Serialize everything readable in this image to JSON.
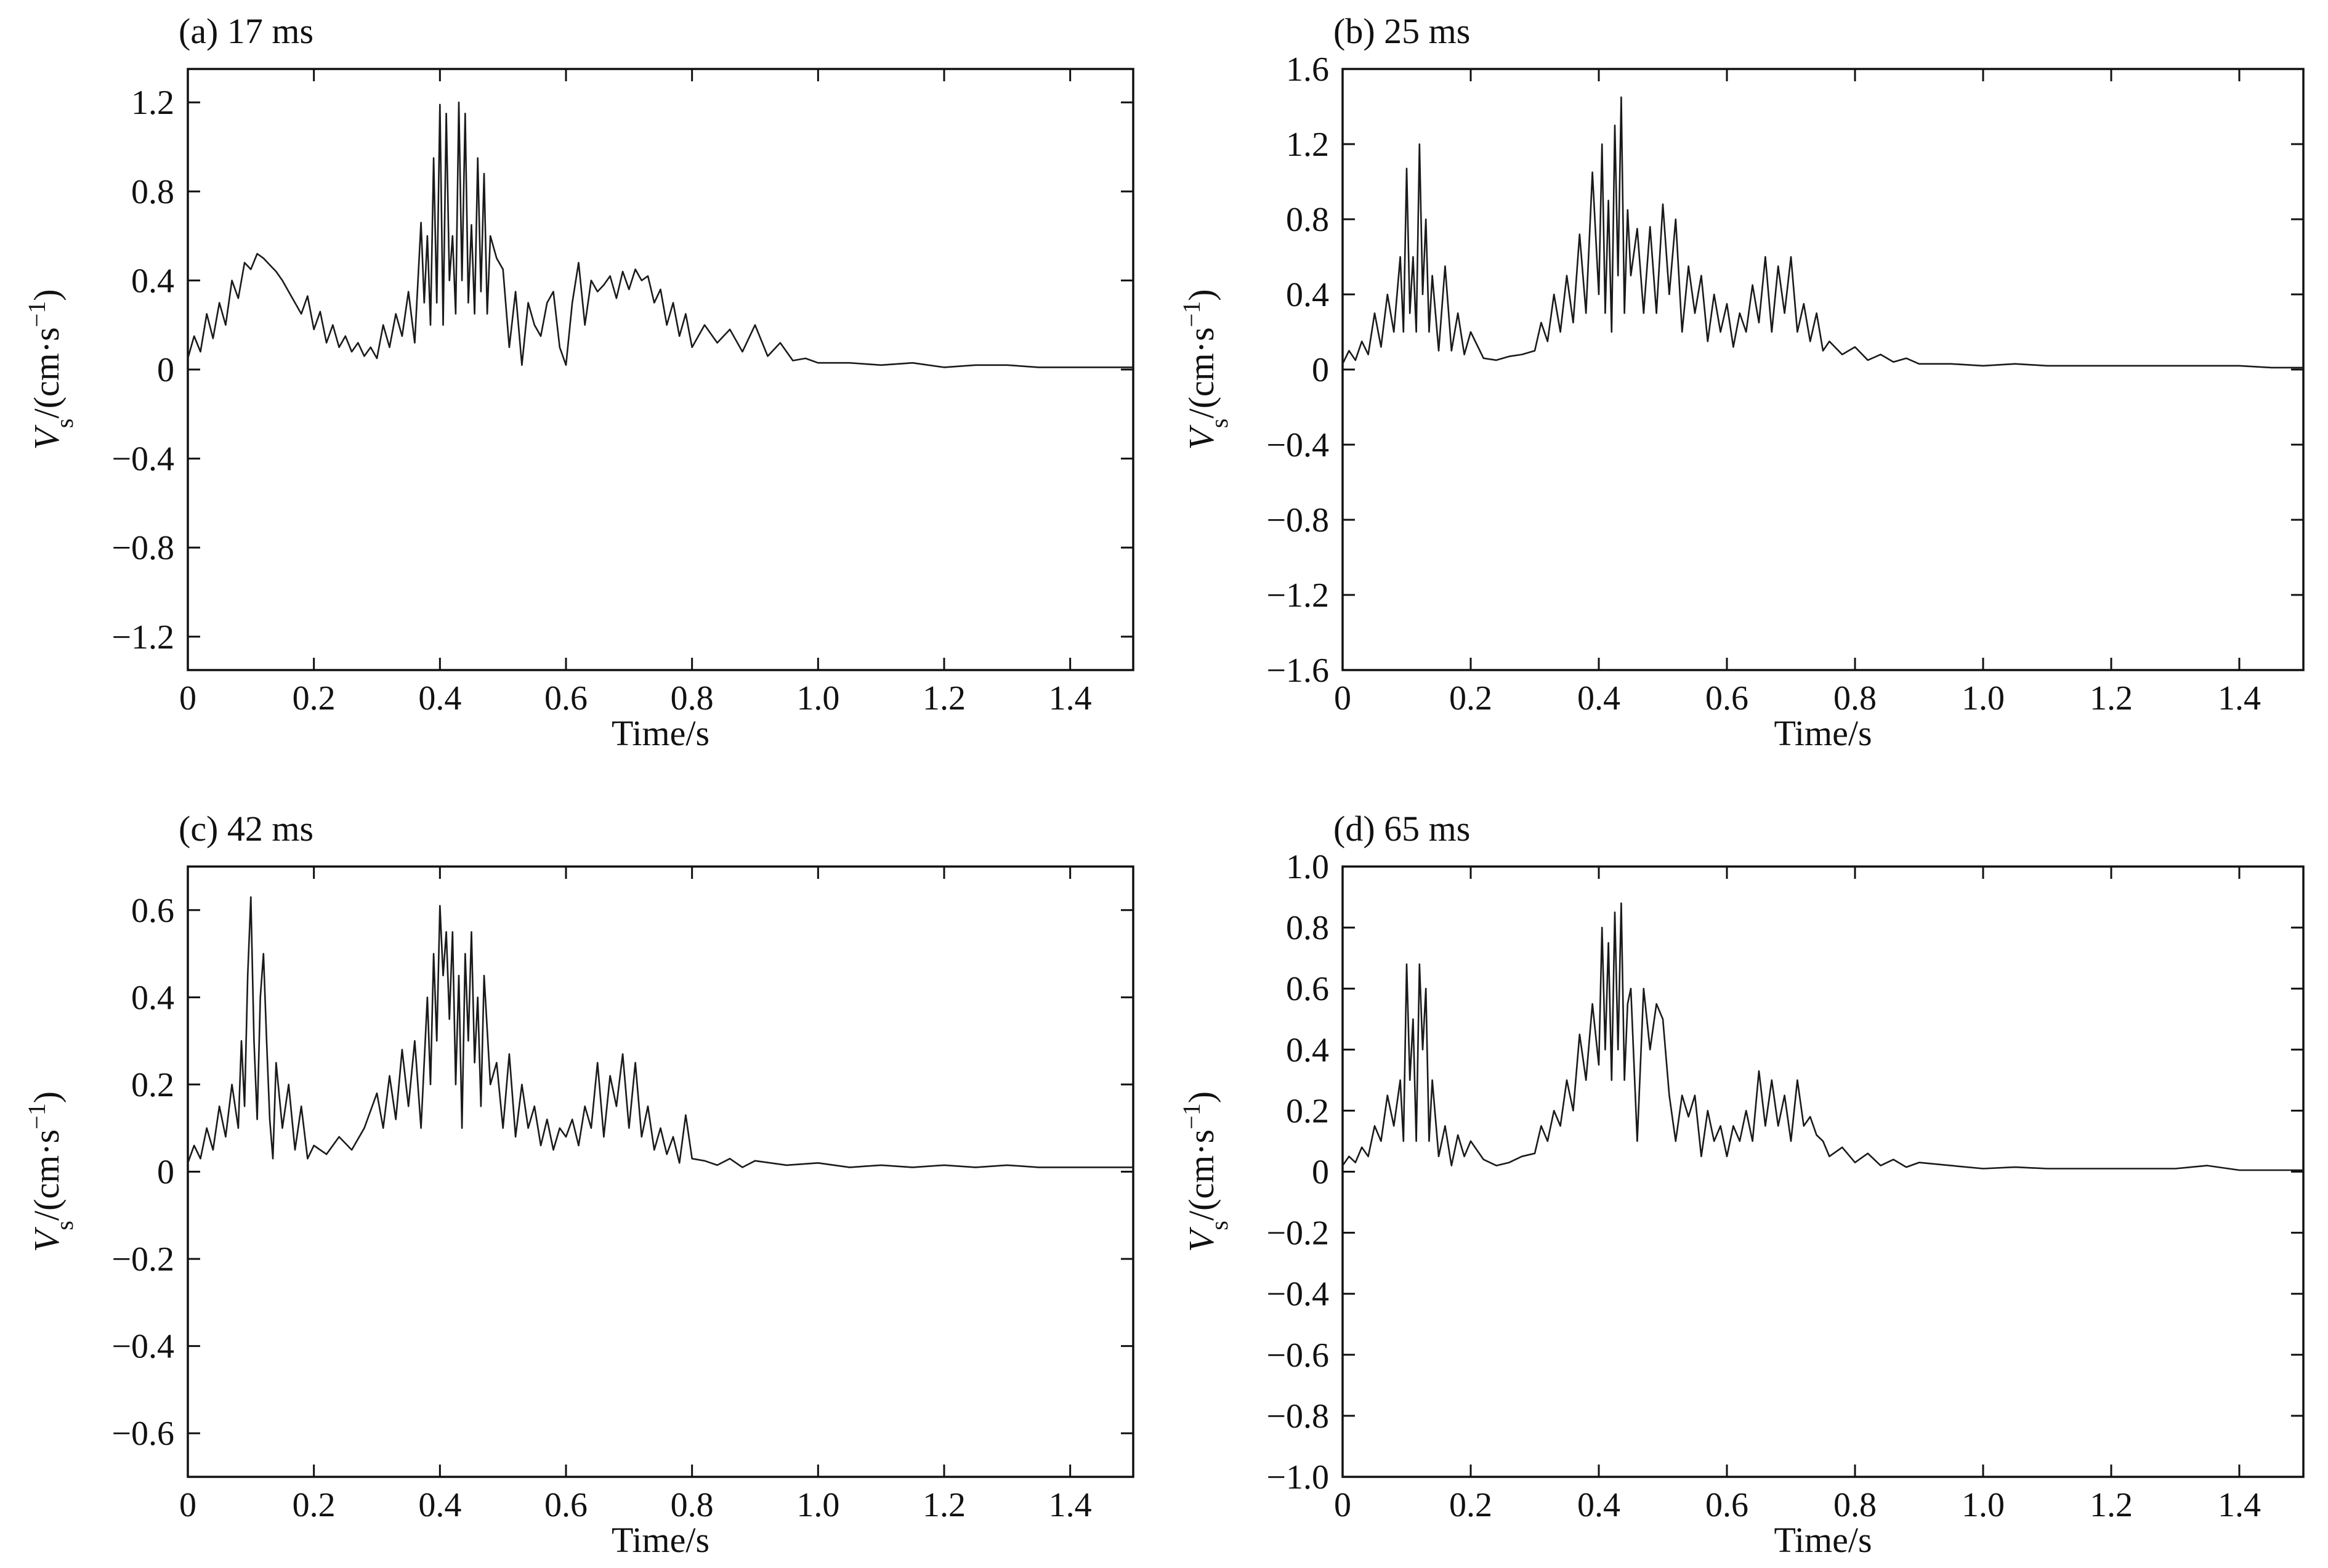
{
  "chart_data": [
    {
      "type": "line",
      "title": "(a) 17 ms",
      "xlabel": "Time/s",
      "ylabel": {
        "main": "V",
        "sub": "s",
        "unit": "/(cm·s",
        "sup": "−1",
        "close": ")"
      },
      "xlim": [
        0,
        1.5
      ],
      "ylim": [
        -1.35,
        1.35
      ],
      "xticks": [
        0,
        0.2,
        0.4,
        0.6,
        0.8,
        1.0,
        1.2,
        1.4
      ],
      "xtick_labels": [
        "0",
        "0.2",
        "0.4",
        "0.6",
        "0.8",
        "1.0",
        "1.2",
        "1.4"
      ],
      "yticks": [
        -1.2,
        -0.8,
        -0.4,
        0,
        0.4,
        0.8,
        1.2
      ],
      "ytick_labels": [
        "−1.2",
        "−0.8",
        "−0.4",
        "0",
        "0.4",
        "0.8",
        "1.2"
      ],
      "grid": false,
      "series": [
        {
          "x": [
            0,
            0.01,
            0.02,
            0.03,
            0.04,
            0.05,
            0.06,
            0.07,
            0.08,
            0.09,
            0.1,
            0.11,
            0.12,
            0.13,
            0.14,
            0.15,
            0.16,
            0.17,
            0.18,
            0.19,
            0.2,
            0.21,
            0.22,
            0.23,
            0.24,
            0.25,
            0.26,
            0.27,
            0.28,
            0.29,
            0.3,
            0.31,
            0.32,
            0.33,
            0.34,
            0.35,
            0.36,
            0.37,
            0.375,
            0.38,
            0.385,
            0.39,
            0.395,
            0.4,
            0.405,
            0.41,
            0.415,
            0.42,
            0.425,
            0.43,
            0.435,
            0.44,
            0.445,
            0.45,
            0.455,
            0.46,
            0.465,
            0.47,
            0.475,
            0.48,
            0.49,
            0.5,
            0.51,
            0.52,
            0.53,
            0.54,
            0.55,
            0.56,
            0.57,
            0.58,
            0.59,
            0.6,
            0.61,
            0.62,
            0.63,
            0.64,
            0.65,
            0.66,
            0.67,
            0.68,
            0.69,
            0.7,
            0.71,
            0.72,
            0.73,
            0.74,
            0.75,
            0.76,
            0.77,
            0.78,
            0.79,
            0.8,
            0.82,
            0.84,
            0.86,
            0.88,
            0.9,
            0.92,
            0.94,
            0.96,
            0.98,
            1.0,
            1.05,
            1.1,
            1.15,
            1.2,
            1.25,
            1.3,
            1.35,
            1.4,
            1.45,
            1.5
          ],
          "y": [
            0.05,
            0.15,
            0.08,
            0.25,
            0.14,
            0.3,
            0.2,
            0.4,
            0.32,
            0.48,
            0.45,
            0.52,
            0.5,
            0.47,
            0.44,
            0.4,
            0.35,
            0.3,
            0.25,
            0.33,
            0.18,
            0.26,
            0.12,
            0.2,
            0.1,
            0.15,
            0.08,
            0.12,
            0.06,
            0.1,
            0.05,
            0.2,
            0.1,
            0.25,
            0.15,
            0.35,
            0.12,
            0.66,
            0.3,
            0.6,
            0.2,
            0.95,
            0.3,
            1.19,
            0.2,
            1.15,
            0.4,
            0.6,
            0.25,
            1.2,
            0.4,
            1.15,
            0.3,
            0.65,
            0.25,
            0.95,
            0.35,
            0.88,
            0.25,
            0.6,
            0.5,
            0.45,
            0.1,
            0.35,
            0.02,
            0.3,
            0.2,
            0.15,
            0.3,
            0.35,
            0.1,
            0.02,
            0.3,
            0.48,
            0.2,
            0.4,
            0.35,
            0.38,
            0.42,
            0.32,
            0.44,
            0.36,
            0.45,
            0.4,
            0.42,
            0.3,
            0.36,
            0.2,
            0.3,
            0.15,
            0.25,
            0.1,
            0.2,
            0.12,
            0.18,
            0.08,
            0.2,
            0.06,
            0.12,
            0.04,
            0.05,
            0.03,
            0.03,
            0.02,
            0.03,
            0.01,
            0.02,
            0.02,
            0.01,
            0.01,
            0.01,
            0.01
          ]
        }
      ]
    },
    {
      "type": "line",
      "title": "(b) 25 ms",
      "xlabel": "Time/s",
      "ylabel": {
        "main": "V",
        "sub": "s",
        "unit": "/(cm·s",
        "sup": "−1",
        "close": ")"
      },
      "xlim": [
        0,
        1.5
      ],
      "ylim": [
        -1.6,
        1.6
      ],
      "xticks": [
        0,
        0.2,
        0.4,
        0.6,
        0.8,
        1.0,
        1.2,
        1.4
      ],
      "xtick_labels": [
        "0",
        "0.2",
        "0.4",
        "0.6",
        "0.8",
        "1.0",
        "1.2",
        "1.4"
      ],
      "yticks": [
        -1.6,
        -1.2,
        -0.8,
        -0.4,
        0,
        0.4,
        0.8,
        1.2,
        1.6
      ],
      "ytick_labels": [
        "−1.6",
        "−1.2",
        "−0.8",
        "−0.4",
        "0",
        "0.4",
        "0.8",
        "1.2",
        "1.6"
      ],
      "grid": false,
      "series": [
        {
          "x": [
            0,
            0.01,
            0.02,
            0.03,
            0.04,
            0.05,
            0.06,
            0.07,
            0.08,
            0.09,
            0.095,
            0.1,
            0.105,
            0.11,
            0.115,
            0.12,
            0.125,
            0.13,
            0.135,
            0.14,
            0.15,
            0.16,
            0.17,
            0.18,
            0.19,
            0.2,
            0.22,
            0.24,
            0.26,
            0.28,
            0.3,
            0.31,
            0.32,
            0.33,
            0.34,
            0.35,
            0.36,
            0.37,
            0.38,
            0.39,
            0.4,
            0.405,
            0.41,
            0.415,
            0.42,
            0.425,
            0.43,
            0.435,
            0.44,
            0.445,
            0.45,
            0.46,
            0.47,
            0.48,
            0.49,
            0.5,
            0.51,
            0.52,
            0.53,
            0.54,
            0.55,
            0.56,
            0.57,
            0.58,
            0.59,
            0.6,
            0.61,
            0.62,
            0.63,
            0.64,
            0.65,
            0.66,
            0.67,
            0.68,
            0.69,
            0.7,
            0.71,
            0.72,
            0.73,
            0.74,
            0.75,
            0.76,
            0.78,
            0.8,
            0.82,
            0.84,
            0.86,
            0.88,
            0.9,
            0.95,
            1.0,
            1.05,
            1.1,
            1.15,
            1.2,
            1.25,
            1.3,
            1.35,
            1.4,
            1.45,
            1.5
          ],
          "y": [
            0.03,
            0.1,
            0.05,
            0.15,
            0.08,
            0.3,
            0.12,
            0.4,
            0.2,
            0.6,
            0.2,
            1.07,
            0.3,
            0.6,
            0.2,
            1.2,
            0.4,
            0.8,
            0.2,
            0.5,
            0.1,
            0.55,
            0.1,
            0.3,
            0.08,
            0.2,
            0.06,
            0.05,
            0.07,
            0.08,
            0.1,
            0.25,
            0.15,
            0.4,
            0.2,
            0.5,
            0.25,
            0.72,
            0.3,
            1.05,
            0.4,
            1.2,
            0.3,
            0.9,
            0.2,
            1.3,
            0.5,
            1.45,
            0.3,
            0.85,
            0.5,
            0.75,
            0.3,
            0.76,
            0.3,
            0.88,
            0.4,
            0.8,
            0.2,
            0.55,
            0.3,
            0.5,
            0.15,
            0.4,
            0.2,
            0.35,
            0.12,
            0.3,
            0.2,
            0.45,
            0.25,
            0.6,
            0.2,
            0.55,
            0.3,
            0.6,
            0.2,
            0.35,
            0.15,
            0.3,
            0.1,
            0.15,
            0.08,
            0.12,
            0.05,
            0.08,
            0.04,
            0.06,
            0.03,
            0.03,
            0.02,
            0.03,
            0.02,
            0.02,
            0.02,
            0.02,
            0.02,
            0.02,
            0.02,
            0.01,
            0.01
          ]
        }
      ]
    },
    {
      "type": "line",
      "title": "(c) 42 ms",
      "xlabel": "Time/s",
      "ylabel": {
        "main": "V",
        "sub": "s",
        "unit": "/(cm·s",
        "sup": "−1",
        "close": ")"
      },
      "xlim": [
        0,
        1.5
      ],
      "ylim": [
        -0.7,
        0.7
      ],
      "xticks": [
        0,
        0.2,
        0.4,
        0.6,
        0.8,
        1.0,
        1.2,
        1.4
      ],
      "xtick_labels": [
        "0",
        "0.2",
        "0.4",
        "0.6",
        "0.8",
        "1.0",
        "1.2",
        "1.4"
      ],
      "yticks": [
        -0.6,
        -0.4,
        -0.2,
        0,
        0.2,
        0.4,
        0.6
      ],
      "ytick_labels": [
        "−0.6",
        "−0.4",
        "−0.2",
        "0",
        "0.2",
        "0.4",
        "0.6"
      ],
      "grid": false,
      "series": [
        {
          "x": [
            0,
            0.01,
            0.02,
            0.03,
            0.04,
            0.05,
            0.06,
            0.07,
            0.08,
            0.085,
            0.09,
            0.095,
            0.1,
            0.105,
            0.11,
            0.115,
            0.12,
            0.125,
            0.13,
            0.135,
            0.14,
            0.15,
            0.16,
            0.17,
            0.18,
            0.19,
            0.2,
            0.22,
            0.24,
            0.26,
            0.28,
            0.3,
            0.31,
            0.32,
            0.33,
            0.34,
            0.35,
            0.36,
            0.37,
            0.38,
            0.385,
            0.39,
            0.395,
            0.4,
            0.405,
            0.41,
            0.415,
            0.42,
            0.425,
            0.43,
            0.435,
            0.44,
            0.445,
            0.45,
            0.455,
            0.46,
            0.465,
            0.47,
            0.48,
            0.49,
            0.5,
            0.51,
            0.52,
            0.53,
            0.54,
            0.55,
            0.56,
            0.57,
            0.58,
            0.59,
            0.6,
            0.61,
            0.62,
            0.63,
            0.64,
            0.65,
            0.66,
            0.67,
            0.68,
            0.69,
            0.7,
            0.71,
            0.72,
            0.73,
            0.74,
            0.75,
            0.76,
            0.77,
            0.78,
            0.79,
            0.8,
            0.82,
            0.84,
            0.86,
            0.88,
            0.9,
            0.95,
            1.0,
            1.05,
            1.1,
            1.15,
            1.2,
            1.25,
            1.3,
            1.35,
            1.4,
            1.45,
            1.5
          ],
          "y": [
            0.02,
            0.06,
            0.03,
            0.1,
            0.05,
            0.15,
            0.08,
            0.2,
            0.1,
            0.3,
            0.15,
            0.45,
            0.63,
            0.3,
            0.12,
            0.4,
            0.5,
            0.3,
            0.12,
            0.03,
            0.25,
            0.1,
            0.2,
            0.05,
            0.15,
            0.03,
            0.06,
            0.04,
            0.08,
            0.05,
            0.1,
            0.18,
            0.1,
            0.22,
            0.12,
            0.28,
            0.15,
            0.3,
            0.1,
            0.4,
            0.2,
            0.5,
            0.3,
            0.61,
            0.45,
            0.55,
            0.35,
            0.55,
            0.2,
            0.45,
            0.1,
            0.5,
            0.3,
            0.55,
            0.25,
            0.4,
            0.15,
            0.45,
            0.2,
            0.25,
            0.1,
            0.27,
            0.08,
            0.2,
            0.1,
            0.15,
            0.06,
            0.12,
            0.05,
            0.1,
            0.08,
            0.12,
            0.06,
            0.15,
            0.1,
            0.25,
            0.08,
            0.22,
            0.15,
            0.27,
            0.1,
            0.25,
            0.08,
            0.15,
            0.05,
            0.1,
            0.04,
            0.08,
            0.02,
            0.13,
            0.03,
            0.025,
            0.015,
            0.03,
            0.01,
            0.025,
            0.015,
            0.02,
            0.01,
            0.015,
            0.01,
            0.015,
            0.01,
            0.015,
            0.01,
            0.01,
            0.01,
            0.01
          ]
        }
      ]
    },
    {
      "type": "line",
      "title": "(d) 65 ms",
      "xlabel": "Time/s",
      "ylabel": {
        "main": "V",
        "sub": "s",
        "unit": "/(cm·s",
        "sup": "−1",
        "close": ")"
      },
      "xlim": [
        0,
        1.5
      ],
      "ylim": [
        -1.0,
        1.0
      ],
      "xticks": [
        0,
        0.2,
        0.4,
        0.6,
        0.8,
        1.0,
        1.2,
        1.4
      ],
      "xtick_labels": [
        "0",
        "0.2",
        "0.4",
        "0.6",
        "0.8",
        "1.0",
        "1.2",
        "1.4"
      ],
      "yticks": [
        -1.0,
        -0.8,
        -0.6,
        -0.4,
        -0.2,
        0,
        0.2,
        0.4,
        0.6,
        0.8,
        1.0
      ],
      "ytick_labels": [
        "−1.0",
        "−0.8",
        "−0.6",
        "−0.4",
        "−0.2",
        "0",
        "0.2",
        "0.4",
        "0.6",
        "0.8",
        "1.0"
      ],
      "grid": false,
      "series": [
        {
          "x": [
            0,
            0.01,
            0.02,
            0.03,
            0.04,
            0.05,
            0.06,
            0.07,
            0.08,
            0.09,
            0.095,
            0.1,
            0.105,
            0.11,
            0.115,
            0.12,
            0.125,
            0.13,
            0.135,
            0.14,
            0.15,
            0.16,
            0.17,
            0.18,
            0.19,
            0.2,
            0.22,
            0.24,
            0.26,
            0.28,
            0.3,
            0.31,
            0.32,
            0.33,
            0.34,
            0.35,
            0.36,
            0.37,
            0.38,
            0.39,
            0.4,
            0.405,
            0.41,
            0.415,
            0.42,
            0.425,
            0.43,
            0.435,
            0.44,
            0.445,
            0.45,
            0.46,
            0.47,
            0.48,
            0.49,
            0.5,
            0.51,
            0.52,
            0.53,
            0.54,
            0.55,
            0.56,
            0.57,
            0.58,
            0.59,
            0.6,
            0.61,
            0.62,
            0.63,
            0.64,
            0.65,
            0.66,
            0.67,
            0.68,
            0.69,
            0.7,
            0.71,
            0.72,
            0.73,
            0.74,
            0.75,
            0.76,
            0.78,
            0.8,
            0.82,
            0.84,
            0.86,
            0.88,
            0.9,
            0.95,
            1.0,
            1.05,
            1.1,
            1.15,
            1.2,
            1.25,
            1.3,
            1.35,
            1.4,
            1.45,
            1.5
          ],
          "y": [
            0.02,
            0.05,
            0.03,
            0.08,
            0.05,
            0.15,
            0.1,
            0.25,
            0.15,
            0.3,
            0.1,
            0.68,
            0.3,
            0.5,
            0.1,
            0.68,
            0.4,
            0.6,
            0.1,
            0.3,
            0.05,
            0.15,
            0.02,
            0.12,
            0.05,
            0.1,
            0.04,
            0.02,
            0.03,
            0.05,
            0.06,
            0.15,
            0.1,
            0.2,
            0.15,
            0.3,
            0.2,
            0.45,
            0.3,
            0.55,
            0.35,
            0.8,
            0.4,
            0.75,
            0.3,
            0.85,
            0.4,
            0.88,
            0.3,
            0.55,
            0.6,
            0.1,
            0.6,
            0.4,
            0.55,
            0.5,
            0.25,
            0.1,
            0.25,
            0.18,
            0.25,
            0.05,
            0.2,
            0.1,
            0.15,
            0.05,
            0.15,
            0.1,
            0.2,
            0.1,
            0.33,
            0.15,
            0.3,
            0.15,
            0.25,
            0.1,
            0.3,
            0.15,
            0.18,
            0.12,
            0.1,
            0.05,
            0.08,
            0.03,
            0.06,
            0.02,
            0.04,
            0.015,
            0.03,
            0.02,
            0.01,
            0.015,
            0.01,
            0.01,
            0.01,
            0.01,
            0.01,
            0.02,
            0.005,
            0.005,
            0.005
          ]
        }
      ]
    }
  ]
}
